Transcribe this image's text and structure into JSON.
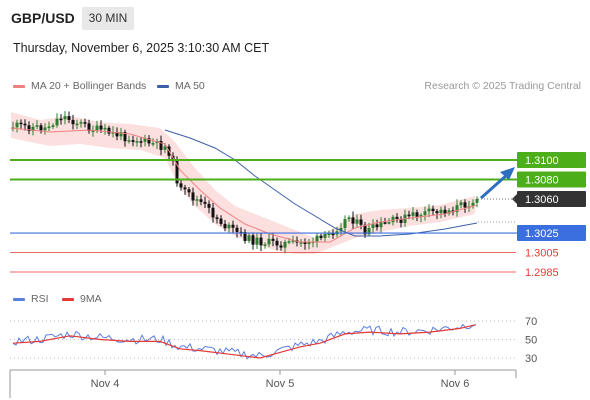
{
  "header": {
    "symbol": "GBP/USD",
    "timeframe": "30 MIN",
    "datetime": "Thursday, November 6, 2025 3:10:30 AM CET"
  },
  "legend": {
    "ma20_label": "MA 20 + Bollinger Bands",
    "ma50_label": "MA 50",
    "rsi_label": "RSI",
    "ma9_label": "9MA",
    "attribution": "Research © 2025 Trading Central"
  },
  "colors": {
    "up_candle": "#2e7d32",
    "down_candle": "#111111",
    "ma20": "#f08080",
    "bollinger_fill": "#fcdcdc",
    "ma50": "#3b5fa8",
    "resistance": "#4caf1a",
    "support": "#3b6fe0",
    "lower_support": "#e53935",
    "last_price": "#333333",
    "arrow": "#2f6fbf",
    "rsi": "#5b7fe0",
    "rsi_ma": "#e53935"
  },
  "chart_data": [
    {
      "type": "candlestick",
      "x_labels": [
        "Nov 4",
        "Nov 5",
        "Nov 6"
      ],
      "y_unit": "price",
      "levels": [
        {
          "value": 1.31,
          "label": "1.3100",
          "kind": "resistance"
        },
        {
          "value": 1.308,
          "label": "1.3080",
          "kind": "resistance"
        },
        {
          "value": 1.306,
          "label": "1.3060",
          "kind": "last_price"
        },
        {
          "value": 1.3025,
          "label": "1.3025",
          "kind": "support"
        },
        {
          "value": 1.3005,
          "label": "1.3005",
          "kind": "lower_support"
        },
        {
          "value": 1.2985,
          "label": "1.2985",
          "kind": "lower_support"
        }
      ],
      "last_price": 1.306,
      "series": [
        {
          "name": "MA 20 + Bollinger Bands"
        },
        {
          "name": "MA 50"
        }
      ]
    },
    {
      "type": "line",
      "series": [
        {
          "name": "RSI"
        },
        {
          "name": "9MA"
        }
      ],
      "y_ticks": [
        30,
        50,
        70
      ],
      "ylim": [
        20,
        80
      ]
    }
  ]
}
